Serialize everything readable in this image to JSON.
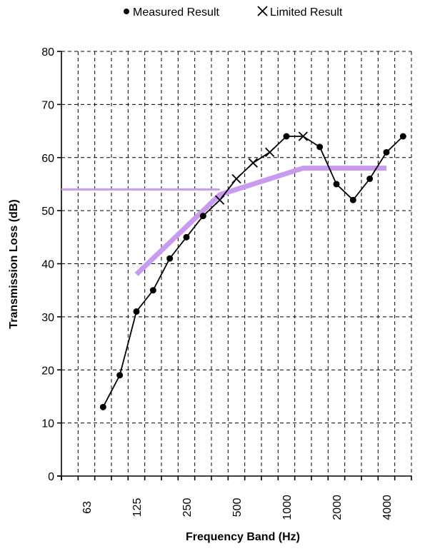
{
  "chart_data": {
    "type": "line",
    "title": "",
    "xlabel": "Frequency Band (Hz)",
    "ylabel": "Transmission Loss (dB)",
    "ylim": [
      0,
      80
    ],
    "y_ticks": [
      0,
      10,
      20,
      30,
      40,
      50,
      60,
      70,
      80
    ],
    "x_bands": [
      "50",
      "63",
      "80",
      "100",
      "125",
      "160",
      "200",
      "250",
      "315",
      "400",
      "500",
      "630",
      "800",
      "1000",
      "1250",
      "1600",
      "2000",
      "2500",
      "3150",
      "4000",
      "5000"
    ],
    "x_tick_labels": [
      "",
      "63",
      "",
      "",
      "125",
      "",
      "",
      "250",
      "",
      "",
      "500",
      "",
      "",
      "1000",
      "",
      "",
      "2000",
      "",
      "",
      "4000",
      ""
    ],
    "grid": true,
    "legend_placement": "top-center",
    "series": [
      {
        "name": "Measured Result",
        "marker": "dot",
        "color": "#000000",
        "x": [
          "80",
          "100",
          "125",
          "160",
          "200",
          "250",
          "315",
          "1000",
          "1600",
          "2000",
          "2500",
          "3150",
          "4000",
          "5000"
        ],
        "values": [
          13,
          19,
          31,
          35,
          41,
          45,
          49,
          64,
          62,
          55,
          52,
          56,
          61,
          64
        ]
      },
      {
        "name": "Limited Result",
        "marker": "cross",
        "color": "#000000",
        "x": [
          "400",
          "500",
          "630",
          "800",
          "1250"
        ],
        "values": [
          52,
          56,
          59,
          61,
          64
        ]
      },
      {
        "name": "",
        "marker": "none",
        "color": "#c89bef",
        "x": [
          "125",
          "160",
          "200",
          "250",
          "315",
          "400",
          "500",
          "630",
          "800",
          "1000",
          "1250",
          "1600",
          "2000",
          "2500",
          "3150",
          "4000"
        ],
        "values": [
          38,
          41,
          44,
          47,
          50,
          53,
          54,
          55,
          56,
          57,
          58,
          58,
          58,
          58,
          58,
          58
        ]
      },
      {
        "name": "",
        "marker": "none",
        "color": "#c89bef",
        "x": [
          "left-edge",
          "400"
        ],
        "values": [
          54,
          54
        ]
      }
    ],
    "connector_line": {
      "color": "#000000",
      "x": [
        "80",
        "100",
        "125",
        "160",
        "200",
        "250",
        "315",
        "400",
        "500",
        "630",
        "800",
        "1000",
        "1250",
        "1600",
        "2000",
        "2500",
        "3150",
        "4000",
        "5000"
      ],
      "values": [
        13,
        19,
        31,
        35,
        41,
        45,
        49,
        52,
        56,
        59,
        61,
        64,
        64,
        62,
        55,
        52,
        56,
        61,
        64
      ]
    }
  }
}
